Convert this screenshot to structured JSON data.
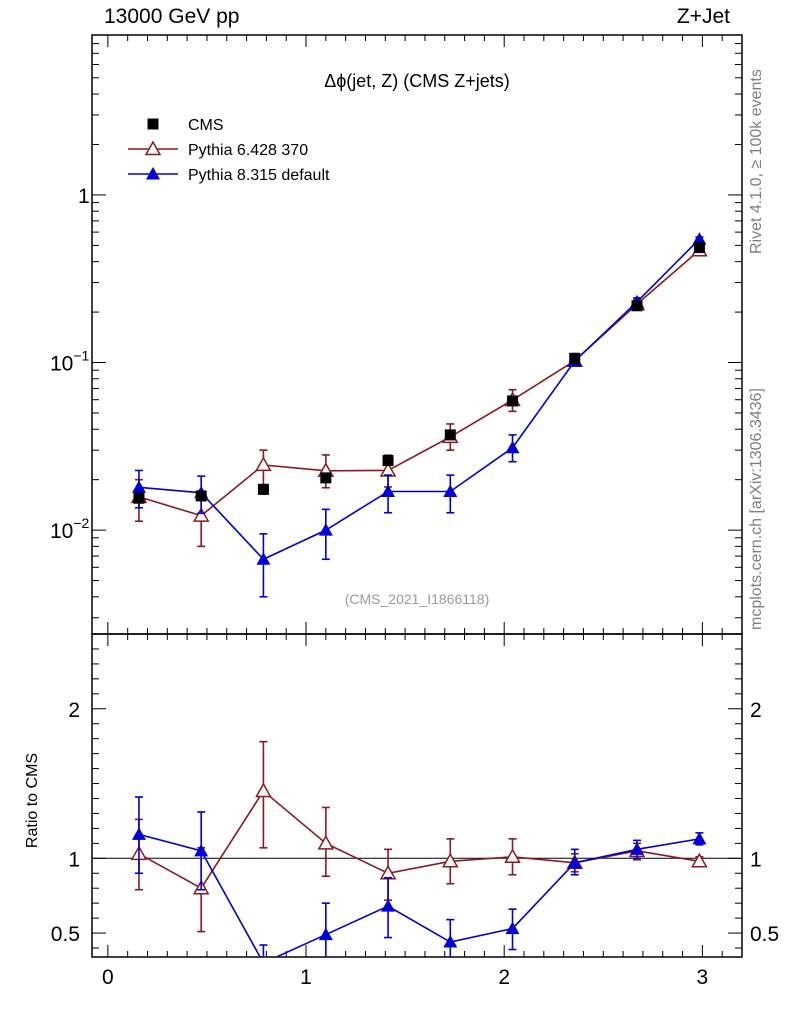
{
  "header": {
    "left": "13000 GeV pp",
    "right": "Z+Jet"
  },
  "side_labels": {
    "rivet": "Rivet 4.1.0, ≥ 100k events",
    "mcplots": "mcplots.cern.ch [arXiv:1306.3436]"
  },
  "colors": {
    "cms": "#000000",
    "pythia6": "#8b1a1f",
    "pythia8": "#0000d4",
    "watermark": "#999999"
  },
  "chart_data": [
    {
      "type": "line",
      "panel": "main",
      "title": "Δϕ(jet, Z) (CMS Z+jets)",
      "watermark": "(CMS_2021_I1866118)",
      "yscale": "log",
      "ylim": [
        0.0024,
        9
      ],
      "xlim": [
        -0.08,
        3.2
      ],
      "y_ticks": [
        {
          "value": 0.01,
          "base": "10",
          "exp": "−2"
        },
        {
          "value": 0.1,
          "base": "10",
          "exp": "−1"
        },
        {
          "value": 1,
          "base": "1",
          "exp": ""
        }
      ],
      "legend": [
        "CMS",
        "Pythia 6.428 370",
        "Pythia 8.315 default"
      ],
      "x": [
        0.157,
        0.471,
        0.785,
        1.1,
        1.414,
        1.728,
        2.042,
        2.356,
        2.67,
        2.985
      ],
      "series": [
        {
          "name": "CMS",
          "marker": "square",
          "values": [
            0.0155,
            0.016,
            0.0175,
            0.0205,
            0.026,
            0.037,
            0.059,
            0.106,
            0.218,
            0.485
          ]
        },
        {
          "name": "Pythia 6.428 370",
          "marker": "triangle-open",
          "values": [
            0.0158,
            0.0122,
            0.0245,
            0.0226,
            0.0227,
            0.036,
            0.0598,
            0.1025,
            0.223,
            0.468
          ],
          "err_lo": [
            0.0113,
            0.008,
            0.0187,
            0.0179,
            0.0181,
            0.03,
            0.0511,
            0.0964,
            0.209,
            0.452
          ],
          "err_hi": [
            0.02,
            0.0165,
            0.03,
            0.0281,
            0.028,
            0.043,
            0.0688,
            0.1086,
            0.236,
            0.485
          ]
        },
        {
          "name": "Pythia 8.315 default",
          "marker": "triangle-filled",
          "values": [
            0.018,
            0.0167,
            0.0067,
            0.01,
            0.017,
            0.017,
            0.031,
            0.102,
            0.23,
            0.545
          ],
          "err_lo": [
            0.0136,
            0.0126,
            0.004,
            0.0067,
            0.0127,
            0.0127,
            0.0256,
            0.0963,
            0.218,
            0.529
          ],
          "err_hi": [
            0.0227,
            0.021,
            0.0095,
            0.0133,
            0.0213,
            0.0213,
            0.037,
            0.108,
            0.243,
            0.56
          ]
        }
      ]
    },
    {
      "type": "line",
      "panel": "ratio",
      "ylabel": "Ratio to CMS",
      "ylim": [
        0.34,
        2.5
      ],
      "xlim": [
        -0.08,
        3.2
      ],
      "y_ticks": [
        0.5,
        1,
        2
      ],
      "y_tick_labels": [
        "0.5",
        "1",
        "2"
      ],
      "x_ticks": [
        0,
        1,
        2,
        3
      ],
      "x_tick_labels": [
        "0",
        "1",
        "2",
        "3"
      ],
      "reference_line": 1,
      "x": [
        0.157,
        0.471,
        0.785,
        1.1,
        1.414,
        1.728,
        2.042,
        2.356,
        2.67,
        2.985
      ],
      "series": [
        {
          "name": "Pythia 6.428 370",
          "marker": "triangle-open",
          "values": [
            1.03,
            0.8,
            1.45,
            1.1,
            0.9,
            0.98,
            1.01,
            0.97,
            1.05,
            0.98
          ],
          "err_lo": [
            0.79,
            0.51,
            1.07,
            0.88,
            0.72,
            0.83,
            0.89,
            0.91,
            0.99,
            0.95
          ],
          "err_hi": [
            1.26,
            1.07,
            1.78,
            1.34,
            1.06,
            1.13,
            1.13,
            1.03,
            1.1,
            1.01
          ]
        },
        {
          "name": "Pythia 8.315 default",
          "marker": "triangle-filled",
          "values": [
            1.16,
            1.05,
            0.3,
            0.49,
            0.68,
            0.44,
            0.53,
            0.97,
            1.06,
            1.13
          ],
          "err_lo": [
            0.9,
            0.79,
            0.18,
            0.31,
            0.47,
            0.32,
            0.39,
            0.89,
            1.0,
            1.09
          ],
          "err_hi": [
            1.41,
            1.31,
            0.42,
            0.7,
            0.87,
            0.59,
            0.66,
            1.06,
            1.12,
            1.17
          ]
        }
      ]
    }
  ]
}
